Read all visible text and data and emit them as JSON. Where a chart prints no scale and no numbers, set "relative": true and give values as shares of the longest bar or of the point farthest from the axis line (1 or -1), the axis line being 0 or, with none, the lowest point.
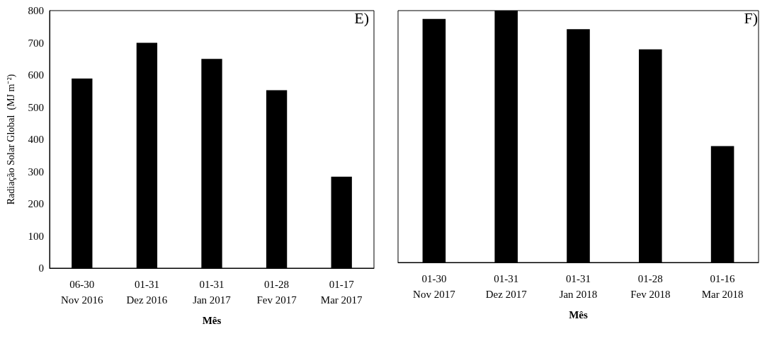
{
  "chart_data": [
    {
      "type": "bar",
      "categories": [
        "06-30\nNov 2016",
        "01-31\nDez 2016",
        "01-31\nJan 2017",
        "01-28\nFev 2017",
        "01-17\nMar 2017"
      ],
      "values": [
        589,
        700,
        650,
        553,
        284
      ],
      "color": "#000000",
      "ylim": [
        0,
        800
      ],
      "yticks": [
        0,
        100,
        200,
        300,
        400,
        500,
        600,
        700,
        800
      ],
      "ylabel": "Radiação Solar Global  (MJ m⁻²)",
      "xlabel": "Mês",
      "annotations": [
        "E)"
      ]
    },
    {
      "type": "bar",
      "relative": true,
      "categories": [
        "01-30\nNov 2017",
        "01-31\nDez 2017",
        "01-31\nJan 2018",
        "01-28\nFev 2018",
        "01-16\nMar 2018"
      ],
      "values": [
        0.967,
        1,
        0.926,
        0.846,
        0.462
      ],
      "color": "#000000",
      "xlabel": "Mês",
      "annotations": [
        "F)"
      ]
    }
  ]
}
